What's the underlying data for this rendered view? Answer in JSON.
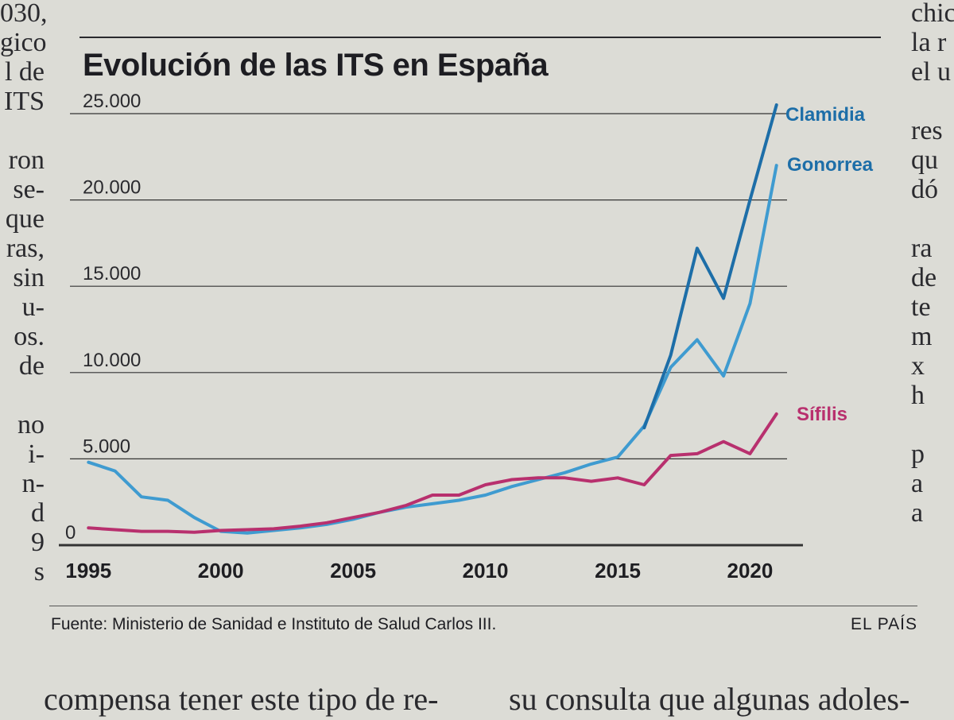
{
  "page_text": {
    "left_column": [
      "030,",
      "gico",
      "l de",
      "ITS",
      "",
      "ron",
      "se-",
      "que",
      "ras,",
      "sin",
      "u-",
      "os.",
      "de",
      "",
      "no",
      "i-",
      "n-",
      "d",
      "9",
      "s"
    ],
    "right_column": [
      "chic",
      "la r",
      "el u",
      "",
      "res",
      "qu",
      "dó",
      "",
      "ra",
      "de",
      "te",
      "m",
      "x",
      "h",
      "",
      "p",
      "a",
      "a"
    ],
    "bottom_left": "compensa tener este tipo de re-",
    "bottom_right": "su consulta que algunas adoles-"
  },
  "figure": {
    "source": "Fuente: Ministerio de Sanidad e Instituto de Salud Carlos III.",
    "brand": "EL PAÍS"
  },
  "colors": {
    "clamidia": "#1d6ea8",
    "gonorrea": "#3f9bd0",
    "sifilis": "#b8306e",
    "grid": "#333333"
  },
  "chart_data": {
    "type": "line",
    "title": "Evolución de las ITS en España",
    "xlabel": "",
    "ylabel": "",
    "xlim": [
      1994,
      2022
    ],
    "ylim": [
      0,
      25000
    ],
    "xticks": [
      1995,
      2000,
      2005,
      2010,
      2015,
      2020
    ],
    "xtick_labels": [
      "1995",
      "2000",
      "2005",
      "2010",
      "2015",
      "2020"
    ],
    "yticks": [
      0,
      5000,
      10000,
      15000,
      20000,
      25000
    ],
    "ytick_labels": [
      "0",
      "5.000",
      "10.000",
      "15.000",
      "20.000",
      "25.000"
    ],
    "grid": "horizontal",
    "series": [
      {
        "key": "clamidia",
        "name": "Clamidia",
        "x": [
          2016,
          2017,
          2018,
          2019,
          2020,
          2021
        ],
        "values": [
          6800,
          11000,
          17200,
          14300,
          20000,
          25500
        ]
      },
      {
        "key": "gonorrea",
        "name": "Gonorrea",
        "x": [
          1995,
          1996,
          1997,
          1998,
          1999,
          2000,
          2001,
          2002,
          2003,
          2004,
          2005,
          2006,
          2007,
          2008,
          2009,
          2010,
          2011,
          2012,
          2013,
          2014,
          2015,
          2016,
          2017,
          2018,
          2019,
          2020,
          2021
        ],
        "values": [
          4800,
          4300,
          2800,
          2600,
          1600,
          800,
          700,
          850,
          1000,
          1200,
          1500,
          1900,
          2200,
          2400,
          2600,
          2900,
          3400,
          3800,
          4200,
          4700,
          5100,
          6900,
          10300,
          11900,
          9800,
          14000,
          22000
        ]
      },
      {
        "key": "sifilis",
        "name": "Sífilis",
        "x": [
          1995,
          1996,
          1997,
          1998,
          1999,
          2000,
          2001,
          2002,
          2003,
          2004,
          2005,
          2006,
          2007,
          2008,
          2009,
          2010,
          2011,
          2012,
          2013,
          2014,
          2015,
          2016,
          2017,
          2018,
          2019,
          2020,
          2021
        ],
        "values": [
          1000,
          900,
          800,
          800,
          750,
          850,
          900,
          950,
          1100,
          1300,
          1600,
          1900,
          2300,
          2900,
          2900,
          3500,
          3800,
          3900,
          3900,
          3700,
          3900,
          3500,
          5200,
          5300,
          6000,
          5300,
          7600
        ]
      }
    ]
  }
}
